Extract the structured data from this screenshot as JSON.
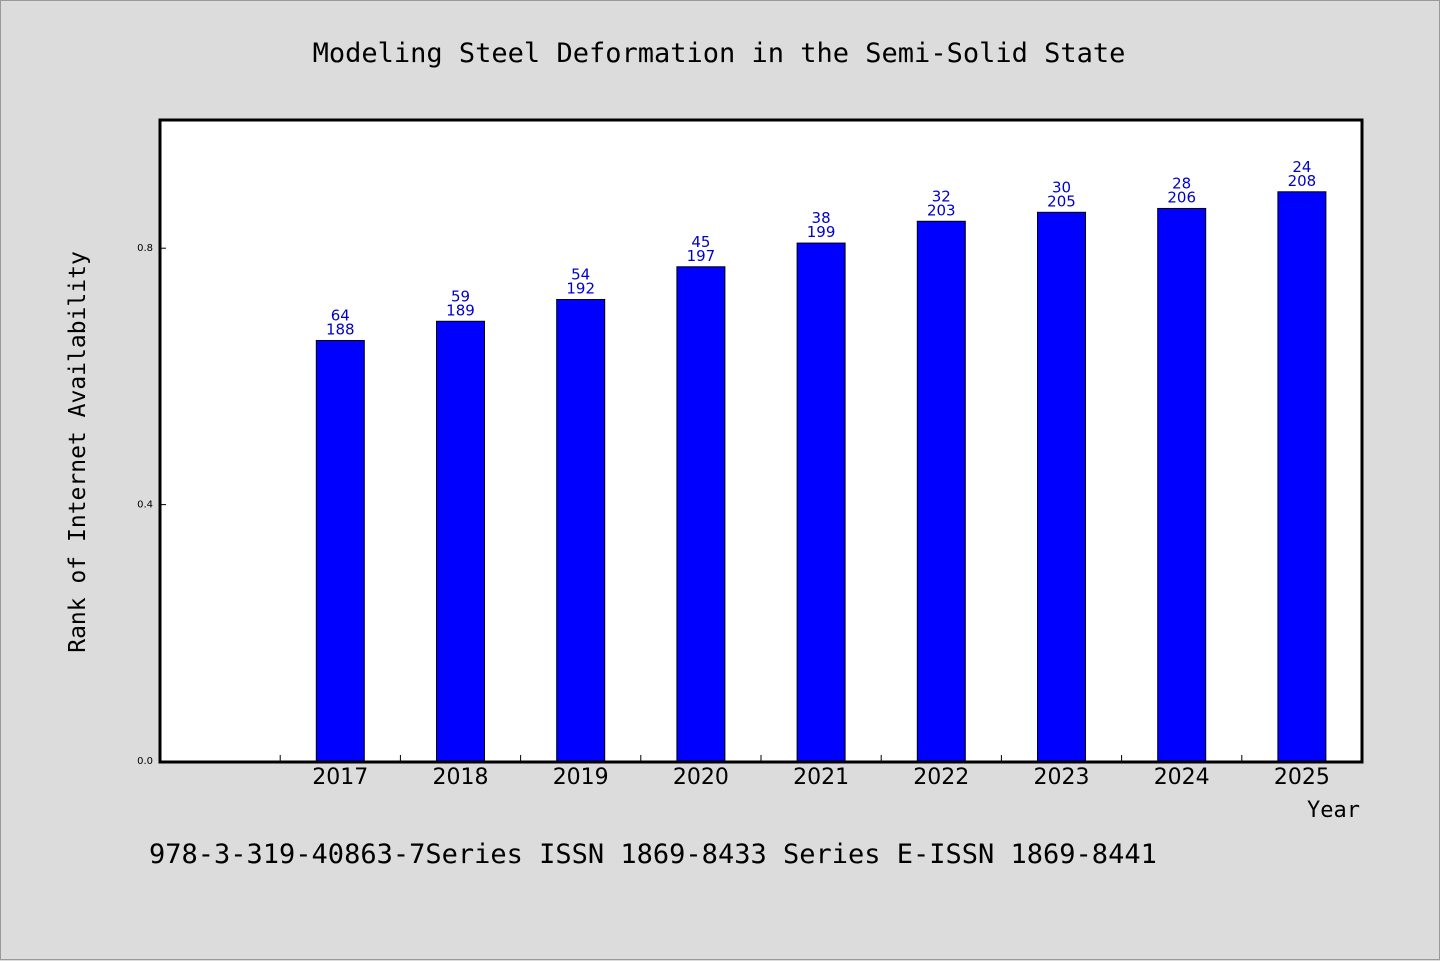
{
  "chart_data": {
    "type": "bar",
    "title": "Modeling Steel Deformation in the Semi-Solid State",
    "xlabel": "Year",
    "ylabel": "Rank of Internet Availability",
    "categories": [
      "2017",
      "2018",
      "2019",
      "2020",
      "2021",
      "2022",
      "2023",
      "2024",
      "2025"
    ],
    "values": [
      0.656,
      0.686,
      0.72,
      0.771,
      0.808,
      0.842,
      0.856,
      0.862,
      0.888
    ],
    "labels_top": [
      "64",
      "59",
      "54",
      "45",
      "38",
      "32",
      "30",
      "28",
      "24"
    ],
    "labels_bottom": [
      "188",
      "189",
      "192",
      "197",
      "199",
      "203",
      "205",
      "206",
      "208"
    ],
    "ylim": [
      0,
      1
    ],
    "yticks": [
      "0.0",
      "0.4",
      "0.8"
    ],
    "ytick_values": [
      0,
      0.4,
      0.8
    ],
    "grid": false,
    "bar_color": "#0000ff",
    "label_color": "#0000cc"
  },
  "footer": "978-3-319-40863-7Series ISSN 1869-8433 Series E-ISSN 1869-8441"
}
